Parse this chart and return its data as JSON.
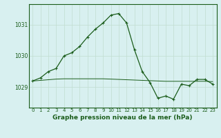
{
  "hours": [
    0,
    1,
    2,
    3,
    4,
    5,
    6,
    7,
    8,
    9,
    10,
    11,
    12,
    13,
    14,
    15,
    16,
    17,
    18,
    19,
    20,
    21,
    22,
    23
  ],
  "pressure_line1": [
    1029.2,
    1029.3,
    1029.5,
    1029.6,
    1030.0,
    1030.1,
    1030.3,
    1030.6,
    1030.85,
    1031.05,
    1031.3,
    1031.35,
    1031.05,
    1030.2,
    1029.5,
    1029.15,
    1028.65,
    1028.72,
    1028.62,
    1029.1,
    1029.05,
    1029.25,
    1029.25,
    1029.1
  ],
  "pressure_line2": [
    1029.2,
    1029.22,
    1029.24,
    1029.26,
    1029.27,
    1029.27,
    1029.27,
    1029.27,
    1029.27,
    1029.27,
    1029.26,
    1029.25,
    1029.24,
    1029.23,
    1029.22,
    1029.21,
    1029.2,
    1029.19,
    1029.19,
    1029.19,
    1029.19,
    1029.19,
    1029.19,
    1029.18
  ],
  "line_color": "#1a5c1a",
  "bg_color": "#d8f0f0",
  "grid_color": "#c0ddd0",
  "title": "Graphe pression niveau de la mer (hPa)",
  "ylim_min": 1028.35,
  "ylim_max": 1031.65,
  "yticks": [
    1029,
    1030,
    1031
  ],
  "xtick_fontsize": 5.0,
  "ytick_fontsize": 5.5,
  "title_fontsize": 6.5
}
